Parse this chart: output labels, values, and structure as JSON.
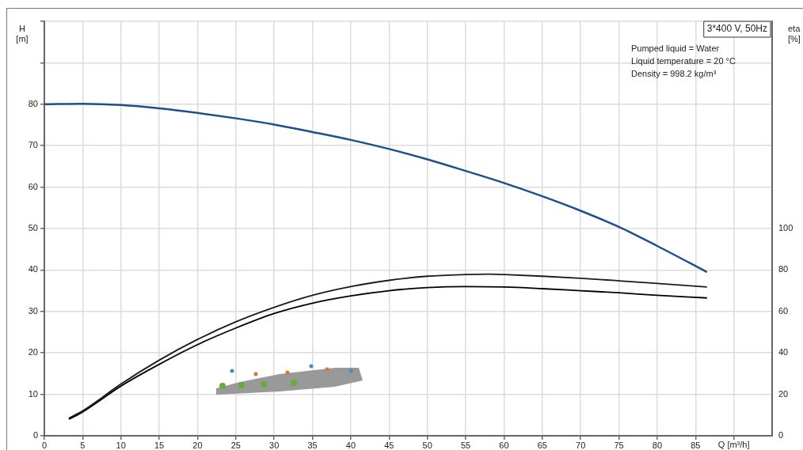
{
  "chart_data": {
    "type": "line",
    "ylabel": "H\n[m]",
    "y2label": "eta\n[%]",
    "xlabel": "Q [m³/h]",
    "annotations": [
      "3*400 V, 50Hz",
      "Pumped liquid = Water",
      "Liquid temperature = 20 °C",
      "Density = 998.2 kg/m³"
    ],
    "xlim": [
      0,
      95
    ],
    "xticks": [
      0,
      5,
      10,
      15,
      20,
      25,
      30,
      35,
      40,
      45,
      50,
      55,
      60,
      65,
      70,
      75,
      80,
      85,
      {
        "value": 90,
        "label": null
      }
    ],
    "ylim": [
      0,
      100
    ],
    "yticks": [
      0,
      10,
      20,
      30,
      40,
      50,
      60,
      70,
      80,
      {
        "value": 90,
        "label": null
      },
      {
        "value": 100,
        "label": null
      }
    ],
    "y2lim": [
      0,
      200
    ],
    "y2ticks": [
      0,
      20,
      40,
      60,
      80,
      100
    ],
    "grid": true,
    "legend": false,
    "marker": "none",
    "line_style": "solid",
    "series": [
      {
        "color": "#1f4e8c",
        "x": [
          0,
          5,
          10,
          15,
          20,
          25,
          30,
          35,
          40,
          45,
          50,
          55,
          60,
          65,
          70,
          75,
          80,
          86.5
        ],
        "values": [
          80,
          80.1,
          79.8,
          79,
          77.9,
          76.6,
          75.1,
          73.3,
          71.4,
          69.2,
          66.7,
          63.9,
          61,
          57.8,
          54.3,
          50.4,
          45.8,
          39.5
        ]
      },
      {
        "color": "#1a1a1a",
        "axis": "y2",
        "x": [
          3.2,
          5,
          10,
          15,
          20,
          25,
          30,
          35,
          40,
          45,
          50,
          55,
          58,
          60,
          65,
          70,
          75,
          80,
          86.5
        ],
        "values": [
          8.5,
          12,
          25,
          36.5,
          46.5,
          55,
          62,
          67.8,
          72,
          75,
          77,
          77.8,
          78,
          77.8,
          77,
          76,
          74.8,
          73.5,
          71.8
        ]
      },
      {
        "color": "#000000",
        "axis": "y2",
        "x": [
          3.2,
          5,
          10,
          15,
          20,
          25,
          30,
          35,
          40,
          45,
          50,
          55,
          60,
          65,
          70,
          75,
          80,
          86.5
        ],
        "values": [
          8,
          11.5,
          24,
          34.5,
          44,
          52,
          59,
          64,
          67.5,
          70,
          71.5,
          72,
          71.8,
          71,
          70,
          69,
          67.8,
          66.5
        ]
      }
    ]
  }
}
